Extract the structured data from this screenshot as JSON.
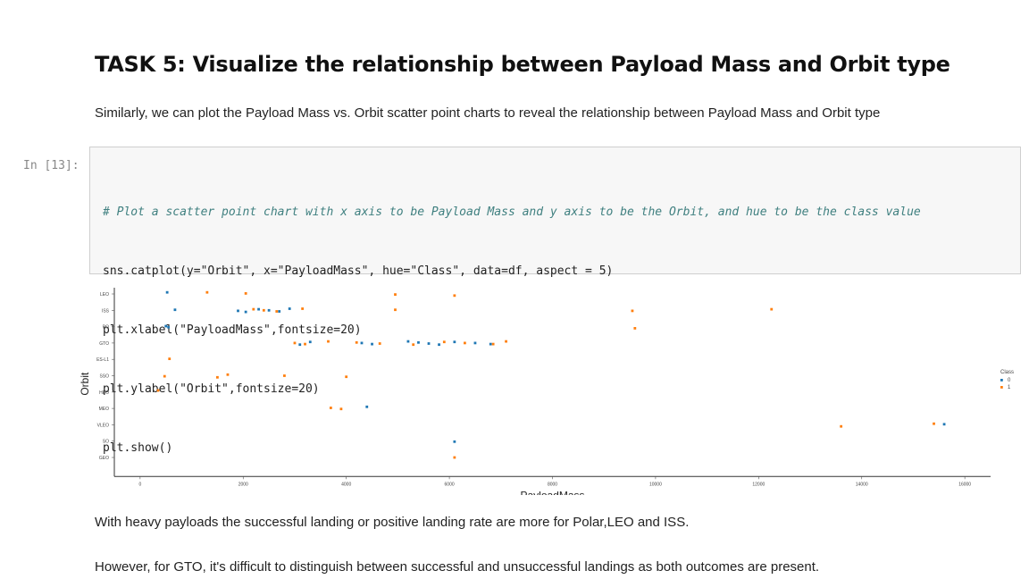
{
  "heading": "TASK 5: Visualize the relationship between Payload Mass and Orbit type",
  "intro": "Similarly, we can plot the Payload Mass vs. Orbit scatter point charts to reveal the relationship between Payload Mass and Orbit type",
  "cell": {
    "prompt": "In [13]:",
    "code_lines": [
      "# Plot a scatter point chart with x axis to be Payload Mass and y axis to be the Orbit, and hue to be the class value",
      "sns.catplot(y=\"Orbit\", x=\"PayloadMass\", hue=\"Class\", data=df, aspect = 5)",
      "plt.xlabel(\"PayloadMass\",fontsize=20)",
      "plt.ylabel(\"Orbit\",fontsize=20)",
      "plt.show()"
    ]
  },
  "conclusion_1": "With heavy payloads the successful landing or positive landing rate are more for Polar,LEO and ISS.",
  "conclusion_2": "However, for GTO, it's difficult to distinguish between successful and unsuccessful landings as both outcomes are present.",
  "colors": {
    "class_0": "#1f77b4",
    "class_1": "#ff7f0e"
  },
  "chart_data": {
    "type": "scatter",
    "xlabel": "PayloadMass",
    "ylabel": "Orbit",
    "categories": [
      "LEO",
      "ISS",
      "PO",
      "GTO",
      "ES-L1",
      "SSO",
      "HEO",
      "MEO",
      "VLEO",
      "SO",
      "GEO"
    ],
    "x_ticks": [
      0,
      2000,
      4000,
      6000,
      8000,
      10000,
      12000,
      14000,
      16000
    ],
    "xlim": [
      -500,
      16500
    ],
    "legend": {
      "title": "Class",
      "entries": [
        "0",
        "1"
      ],
      "placement": "right"
    },
    "series": [
      {
        "name": "0",
        "points": [
          [
            "LEO",
            525
          ],
          [
            "ISS",
            677
          ],
          [
            "ISS",
            1900
          ],
          [
            "ISS",
            2050
          ],
          [
            "ISS",
            2300
          ],
          [
            "ISS",
            2500
          ],
          [
            "ISS",
            2700
          ],
          [
            "ISS",
            2900
          ],
          [
            "PO",
            500
          ],
          [
            "PO",
            550
          ],
          [
            "GTO",
            3100
          ],
          [
            "GTO",
            3300
          ],
          [
            "GTO",
            4300
          ],
          [
            "GTO",
            4500
          ],
          [
            "GTO",
            5200
          ],
          [
            "GTO",
            5400
          ],
          [
            "GTO",
            5600
          ],
          [
            "GTO",
            5800
          ],
          [
            "GTO",
            6100
          ],
          [
            "GTO",
            6500
          ],
          [
            "GTO",
            6800
          ],
          [
            "MEO",
            4400
          ],
          [
            "VLEO",
            15600
          ],
          [
            "SO",
            6100
          ]
        ]
      },
      {
        "name": "1",
        "points": [
          [
            "LEO",
            1300
          ],
          [
            "LEO",
            2050
          ],
          [
            "LEO",
            4950
          ],
          [
            "LEO",
            6100
          ],
          [
            "ISS",
            2200
          ],
          [
            "ISS",
            2400
          ],
          [
            "ISS",
            2650
          ],
          [
            "ISS",
            3150
          ],
          [
            "ISS",
            4950
          ],
          [
            "ISS",
            9550
          ],
          [
            "PO",
            9600
          ],
          [
            "ISS",
            12250
          ],
          [
            "GTO",
            3000
          ],
          [
            "GTO",
            3200
          ],
          [
            "GTO",
            3650
          ],
          [
            "GTO",
            4200
          ],
          [
            "GTO",
            4650
          ],
          [
            "GTO",
            5300
          ],
          [
            "GTO",
            5900
          ],
          [
            "GTO",
            6300
          ],
          [
            "GTO",
            6850
          ],
          [
            "GTO",
            7100
          ],
          [
            "ES-L1",
            570
          ],
          [
            "SSO",
            475
          ],
          [
            "SSO",
            1500
          ],
          [
            "SSO",
            1700
          ],
          [
            "SSO",
            2800
          ],
          [
            "SSO",
            4000
          ],
          [
            "HEO",
            350
          ],
          [
            "MEO",
            3700
          ],
          [
            "MEO",
            3900
          ],
          [
            "VLEO",
            13600
          ],
          [
            "VLEO",
            15400
          ],
          [
            "GEO",
            6100
          ]
        ]
      }
    ]
  }
}
